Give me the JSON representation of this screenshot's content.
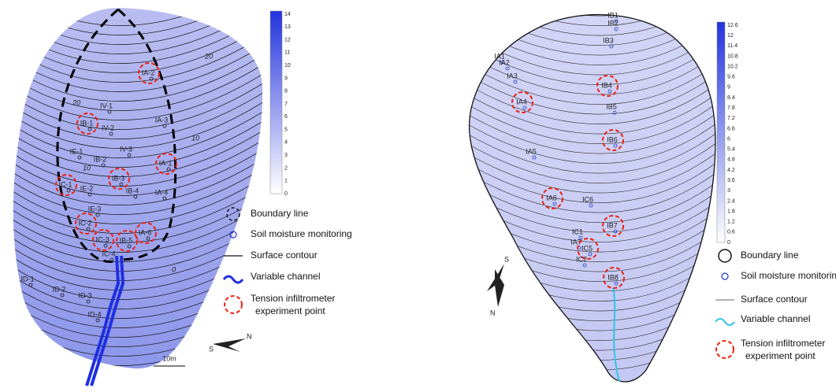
{
  "left": {
    "colorbar_ticks": [
      "0",
      "1",
      "2",
      "3",
      "4",
      "5",
      "6",
      "7",
      "8",
      "9",
      "10",
      "11",
      "12",
      "13",
      "14"
    ],
    "contour_labels": [
      "20",
      "20",
      "10",
      "10",
      "0"
    ],
    "points": [
      "IA-2",
      "IA-3",
      "IA-1",
      "IA-4",
      "IA-6",
      "IV-1",
      "IV-2",
      "IV-3",
      "IB-1",
      "IB-2",
      "IB-3",
      "IB-4",
      "IB-5",
      "IE-1",
      "IE-2",
      "IE-3",
      "IC-1",
      "IC-2",
      "IC-3",
      "IC-4",
      "ID-1",
      "ID-2",
      "ID-3",
      "ID-4"
    ],
    "scale": "10m",
    "compass": [
      "S",
      "N"
    ],
    "legend": [
      "Boundary line",
      "Soil moisture monitoring",
      "Surface contour",
      "Variable channel",
      "Tension infiltrometer",
      "experiment point"
    ]
  },
  "right": {
    "colorbar_ticks": [
      "0",
      "0.6",
      "1.2",
      "1.8",
      "2.4",
      "3",
      "3.6",
      "4.2",
      "4.8",
      "5.4",
      "6",
      "6.6",
      "7.2",
      "7.8",
      "8.4",
      "9",
      "9.6",
      "10.2",
      "10.8",
      "11.4",
      "12",
      "12.6"
    ],
    "points": [
      "IB1",
      "IB2",
      "IB3",
      "IA1",
      "IA2",
      "IA3",
      "IA4",
      "IB4",
      "IB5",
      "IB6",
      "IA5",
      "IA6",
      "IC6",
      "IB7",
      "IC1",
      "IA7",
      "IC5",
      "IC2",
      "IB8"
    ],
    "compass": [
      "S",
      "N"
    ],
    "legend": [
      "Boundary line",
      "Soil moisture monitoring",
      "Surface contour",
      "Variable channel",
      "Tension infiltrometer",
      "experiment point"
    ]
  }
}
